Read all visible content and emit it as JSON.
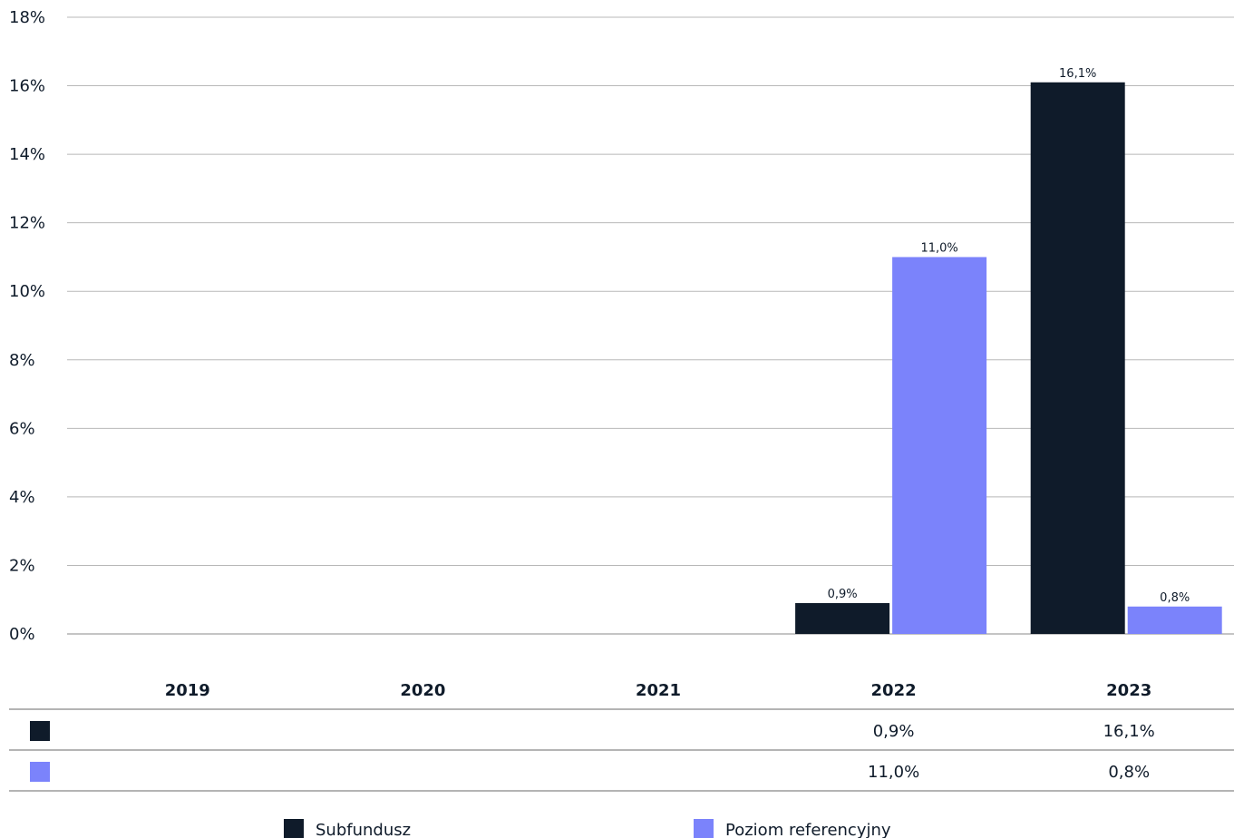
{
  "chart_data": {
    "type": "bar",
    "categories": [
      "2019",
      "2020",
      "2021",
      "2022",
      "2023"
    ],
    "series": [
      {
        "name": "Subfundusz",
        "color": "#0f1b2a",
        "values": [
          null,
          null,
          null,
          0.9,
          16.1
        ],
        "labels": [
          "",
          "",
          "",
          "0,9%",
          "16,1%"
        ]
      },
      {
        "name": "Poziom referencyjny",
        "color": "#7b83fb",
        "values": [
          null,
          null,
          null,
          11.0,
          0.8
        ],
        "labels": [
          "",
          "",
          "",
          "11,0%",
          "0,8%"
        ]
      }
    ],
    "ylim": [
      0,
      18
    ],
    "yticks": [
      0,
      2,
      4,
      6,
      8,
      10,
      12,
      14,
      16,
      18
    ],
    "ytick_labels": [
      "0%",
      "2%",
      "4%",
      "6%",
      "8%",
      "10%",
      "12%",
      "14%",
      "16%",
      "18%"
    ],
    "grid": true,
    "legend": "bottom",
    "table": {
      "rows": [
        [
          "",
          "",
          "",
          "0,9%",
          "16,1%"
        ],
        [
          "",
          "",
          "",
          "11,0%",
          "0,8%"
        ]
      ]
    }
  }
}
